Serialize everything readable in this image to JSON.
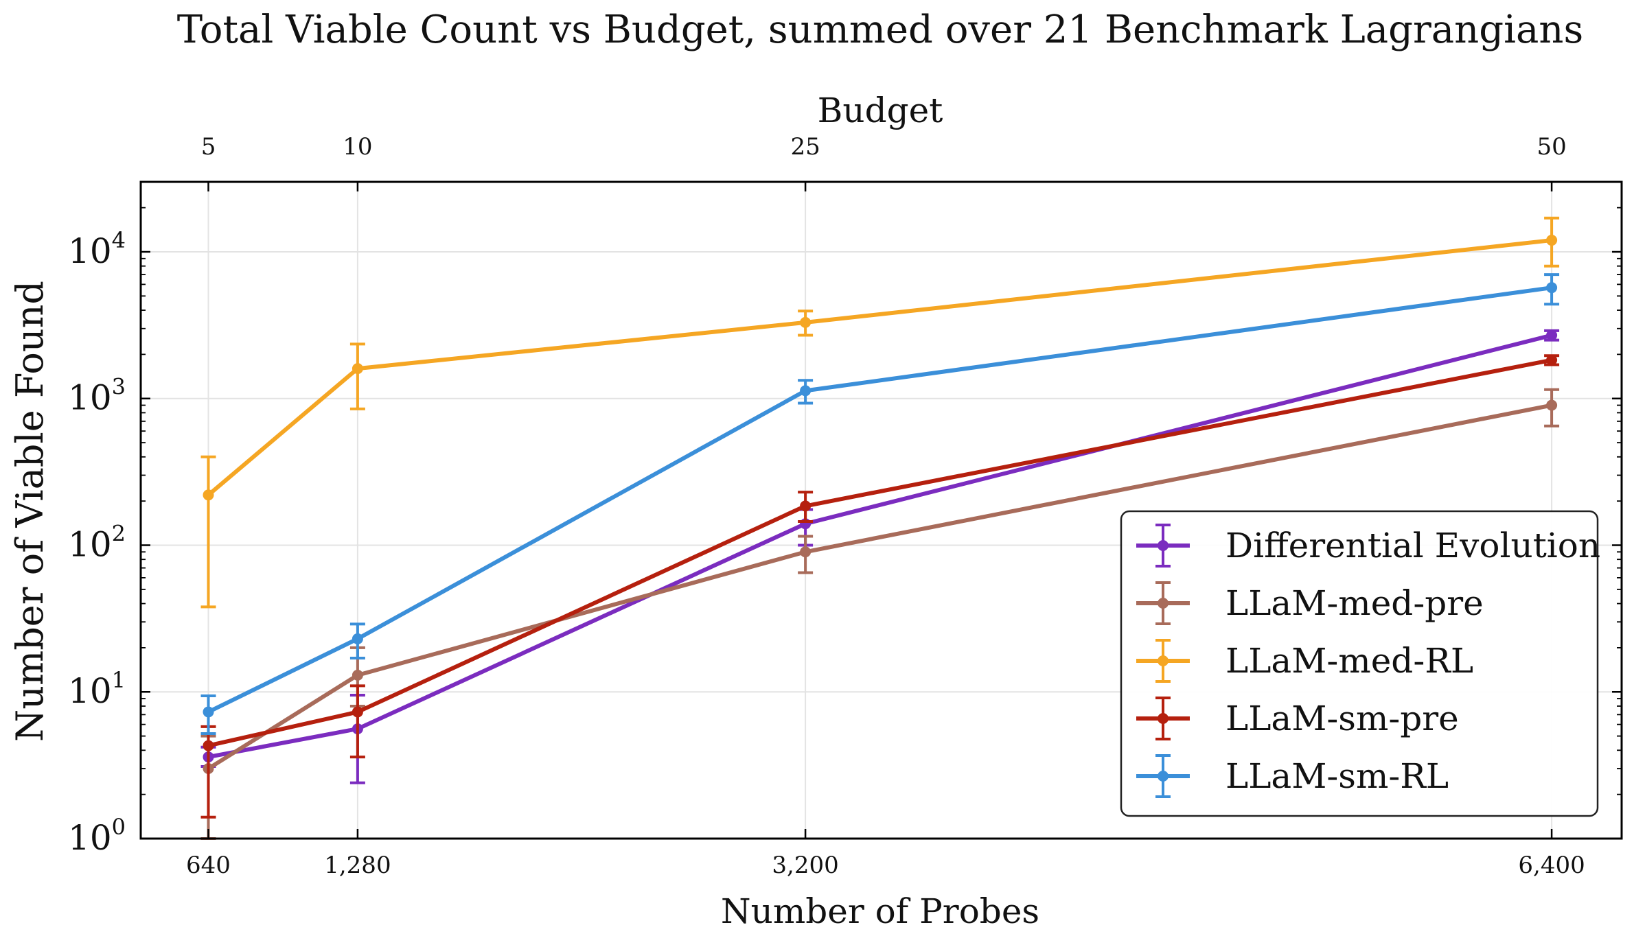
{
  "chart_data": {
    "type": "line",
    "title": "Total Viable Count vs Budget, summed over 21 Benchmark Lagrangians",
    "xlabel": "Number of Probes",
    "ylabel": "Number of Viable Found",
    "secondary_xlabel": "Budget",
    "x": [
      640,
      1280,
      3200,
      6400
    ],
    "x_tick_labels": [
      "640",
      "1,280",
      "3,200",
      "6,400"
    ],
    "secondary_x_tick_labels": [
      "5",
      "10",
      "25",
      "50"
    ],
    "xlim": [
      350,
      6700
    ],
    "ylim": [
      1,
      30000
    ],
    "yscale": "log",
    "y_tick_labels": [
      {
        "base": "10",
        "exp": "0",
        "value": 1
      },
      {
        "base": "10",
        "exp": "1",
        "value": 10
      },
      {
        "base": "10",
        "exp": "2",
        "value": 100
      },
      {
        "base": "10",
        "exp": "3",
        "value": 1000
      },
      {
        "base": "10",
        "exp": "4",
        "value": 10000
      }
    ],
    "grid": true,
    "legend_position": "bottom-right",
    "series": [
      {
        "name": "Differential Evolution",
        "color": "#7b2cbf",
        "values": [
          3.6,
          5.6,
          140,
          2700
        ],
        "err_low": [
          3.1,
          2.4,
          100,
          2500
        ],
        "err_high": [
          4.2,
          9.5,
          175,
          2900
        ]
      },
      {
        "name": "LLaM-med-pre",
        "color": "#a86b5a",
        "values": [
          3.0,
          13,
          90,
          900
        ],
        "err_low": [
          1.0,
          8,
          65,
          650
        ],
        "err_high": [
          5.0,
          20,
          115,
          1150
        ]
      },
      {
        "name": "LLaM-med-RL",
        "color": "#f5a623",
        "values": [
          220,
          1600,
          3300,
          12000
        ],
        "err_low": [
          38,
          850,
          2700,
          8000
        ],
        "err_high": [
          400,
          2350,
          3950,
          17000
        ]
      },
      {
        "name": "LLaM-sm-pre",
        "color": "#b5200e",
        "values": [
          4.3,
          7.3,
          185,
          1830
        ],
        "err_low": [
          1.4,
          3.6,
          145,
          1700
        ],
        "err_high": [
          5.8,
          11,
          230,
          1960
        ]
      },
      {
        "name": "LLaM-sm-RL",
        "color": "#3b8fd9",
        "values": [
          7.3,
          23,
          1130,
          5700
        ],
        "err_low": [
          5.2,
          17,
          930,
          4400
        ],
        "err_high": [
          9.4,
          29,
          1330,
          7000
        ]
      }
    ]
  }
}
